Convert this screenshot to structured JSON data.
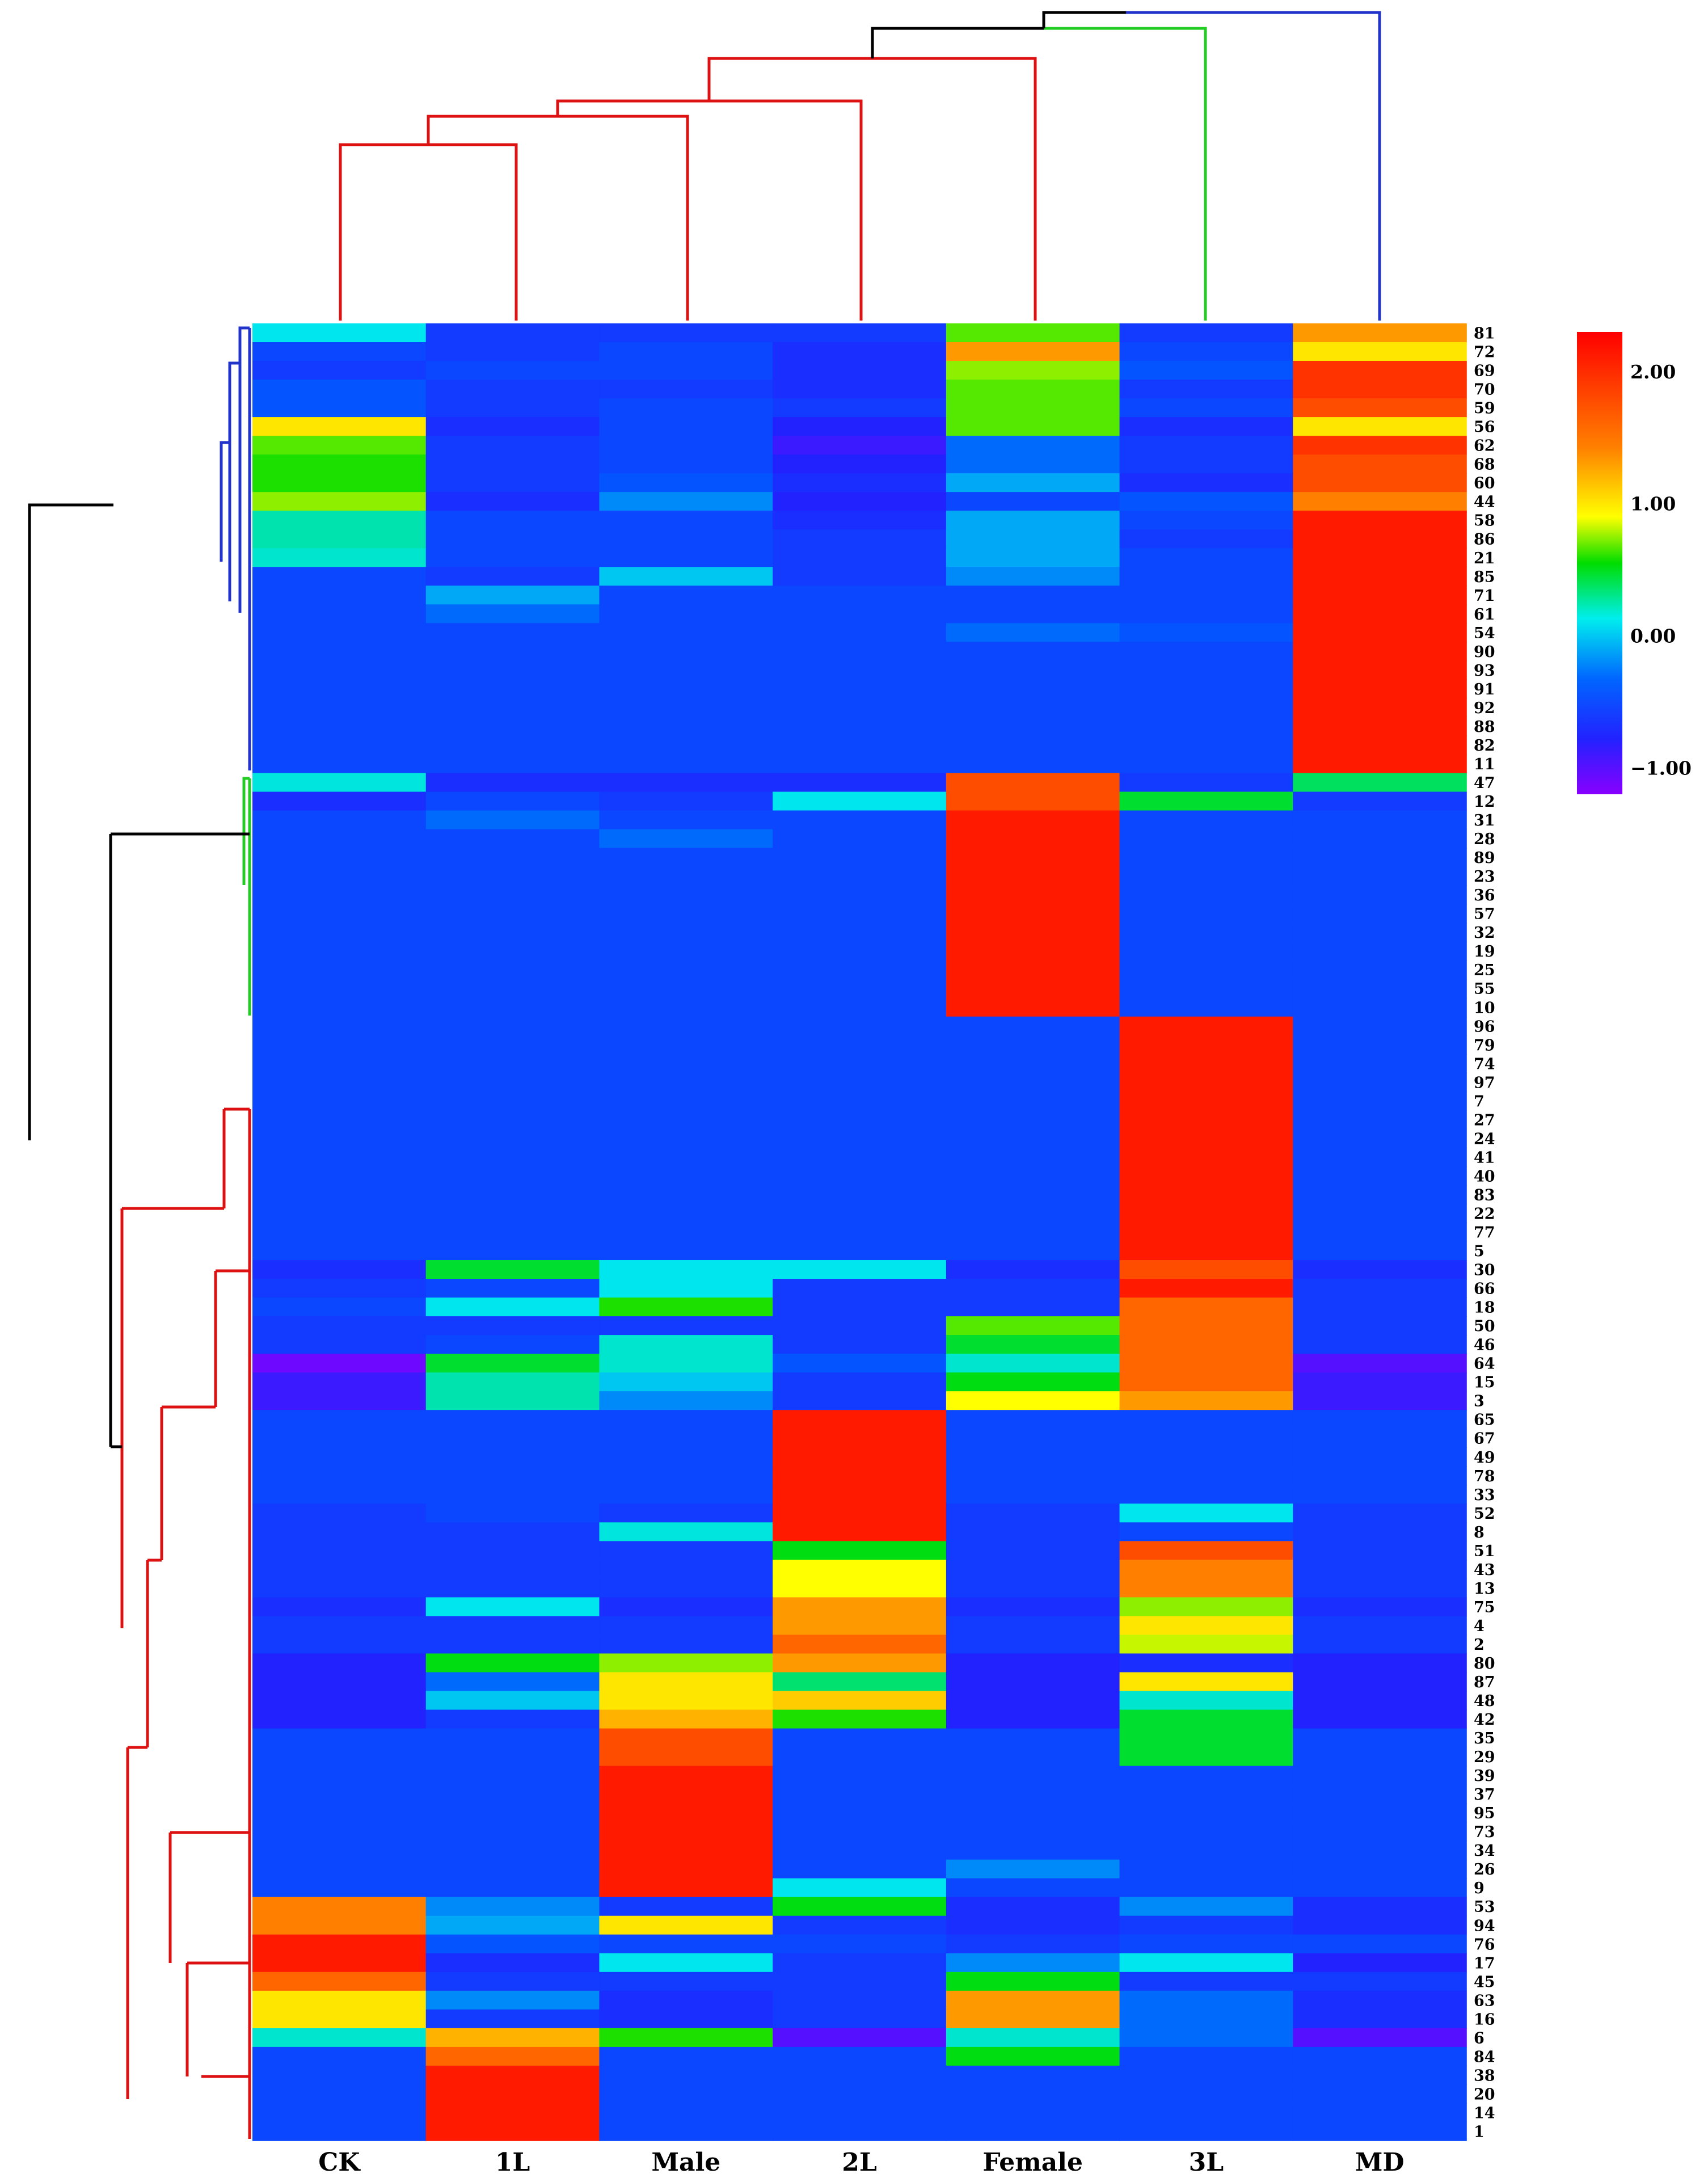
{
  "chart_data": {
    "type": "heatmap",
    "columns": [
      "CK",
      "1L",
      "Male",
      "2L",
      "Female",
      "3L",
      "MD"
    ],
    "rows": [
      "81",
      "72",
      "69",
      "70",
      "59",
      "56",
      "62",
      "68",
      "60",
      "44",
      "58",
      "86",
      "21",
      "85",
      "71",
      "61",
      "54",
      "90",
      "93",
      "91",
      "92",
      "88",
      "82",
      "11",
      "47",
      "12",
      "31",
      "28",
      "89",
      "23",
      "36",
      "57",
      "32",
      "19",
      "25",
      "55",
      "10",
      "96",
      "79",
      "74",
      "97",
      "7",
      "27",
      "24",
      "41",
      "40",
      "83",
      "22",
      "77",
      "5",
      "30",
      "66",
      "18",
      "50",
      "46",
      "64",
      "15",
      "3",
      "65",
      "67",
      "49",
      "78",
      "33",
      "52",
      "8",
      "51",
      "43",
      "13",
      "75",
      "4",
      "2",
      "80",
      "87",
      "48",
      "42",
      "35",
      "29",
      "39",
      "37",
      "95",
      "73",
      "34",
      "26",
      "9",
      "53",
      "94",
      "76",
      "17",
      "45",
      "63",
      "16",
      "6",
      "84",
      "38",
      "20",
      "14",
      "1"
    ],
    "default_value": -0.5,
    "overrides": {
      "81": [
        0.1,
        -0.6,
        -0.6,
        -0.6,
        1.0,
        -0.6,
        1.7
      ],
      "72": [
        -0.5,
        -0.6,
        -0.5,
        -0.7,
        1.7,
        -0.5,
        1.4
      ],
      "69": [
        -0.6,
        -0.5,
        -0.5,
        -0.7,
        1.1,
        -0.4,
        2.1
      ],
      "70": [
        -0.4,
        -0.6,
        -0.6,
        -0.7,
        1.0,
        -0.6,
        2.1
      ],
      "59": [
        -0.4,
        -0.6,
        -0.5,
        -0.6,
        1.0,
        -0.5,
        2.0
      ],
      "56": [
        1.4,
        -0.7,
        -0.5,
        -0.8,
        1.0,
        -0.7,
        1.4
      ],
      "62": [
        1.0,
        -0.6,
        -0.5,
        -0.9,
        -0.3,
        -0.6,
        2.1
      ],
      "68": [
        0.9,
        -0.6,
        -0.5,
        -0.8,
        -0.3,
        -0.6,
        2.0
      ],
      "60": [
        0.9,
        -0.6,
        -0.4,
        -0.7,
        -0.1,
        -0.7,
        2.0
      ],
      "44": [
        1.1,
        -0.7,
        -0.2,
        -0.8,
        -0.5,
        -0.4,
        1.8
      ],
      "58": [
        0.3,
        -0.5,
        -0.5,
        -0.7,
        -0.1,
        -0.5,
        2.2
      ],
      "86": [
        0.3,
        -0.5,
        -0.5,
        -0.6,
        -0.1,
        -0.6,
        2.2
      ],
      "21": [
        0.2,
        -0.5,
        -0.5,
        -0.6,
        -0.1,
        -0.5,
        2.2
      ],
      "85": [
        -0.5,
        -0.6,
        0.0,
        -0.6,
        -0.2,
        -0.5,
        2.2
      ],
      "71": [
        -0.5,
        -0.1,
        -0.5,
        -0.5,
        -0.5,
        -0.5,
        2.2
      ],
      "61": [
        -0.5,
        -0.3,
        -0.5,
        -0.5,
        -0.5,
        -0.5,
        2.2
      ],
      "54": [
        -0.5,
        -0.5,
        -0.5,
        -0.5,
        -0.3,
        -0.4,
        2.2
      ],
      "90": [
        -0.5,
        -0.5,
        -0.5,
        -0.5,
        -0.5,
        -0.5,
        2.2
      ],
      "93": [
        -0.5,
        -0.5,
        -0.5,
        -0.5,
        -0.5,
        -0.5,
        2.2
      ],
      "91": [
        -0.5,
        -0.5,
        -0.5,
        -0.5,
        -0.5,
        -0.5,
        2.2
      ],
      "92": [
        -0.5,
        -0.5,
        -0.5,
        -0.5,
        -0.5,
        -0.5,
        2.2
      ],
      "88": [
        -0.5,
        -0.5,
        -0.5,
        -0.5,
        -0.5,
        -0.5,
        2.2
      ],
      "82": [
        -0.5,
        -0.5,
        -0.5,
        -0.5,
        -0.5,
        -0.5,
        2.2
      ],
      "11": [
        -0.5,
        -0.5,
        -0.5,
        -0.5,
        -0.5,
        -0.5,
        2.2
      ],
      "47": [
        0.15,
        -0.7,
        -0.7,
        -0.7,
        2.0,
        -0.6,
        0.55
      ],
      "12": [
        -0.7,
        -0.5,
        -0.6,
        0.1,
        2.0,
        0.7,
        -0.6
      ],
      "31": [
        -0.5,
        -0.3,
        -0.5,
        -0.5,
        2.2,
        -0.5,
        -0.5
      ],
      "28": [
        -0.5,
        -0.5,
        -0.3,
        -0.5,
        2.2,
        -0.5,
        -0.5
      ],
      "89": [
        -0.5,
        -0.5,
        -0.5,
        -0.5,
        2.2,
        -0.5,
        -0.5
      ],
      "23": [
        -0.5,
        -0.5,
        -0.5,
        -0.5,
        2.2,
        -0.5,
        -0.5
      ],
      "36": [
        -0.5,
        -0.5,
        -0.5,
        -0.5,
        2.2,
        -0.5,
        -0.5
      ],
      "57": [
        -0.5,
        -0.5,
        -0.5,
        -0.5,
        2.2,
        -0.5,
        -0.5
      ],
      "32": [
        -0.5,
        -0.5,
        -0.5,
        -0.5,
        2.2,
        -0.5,
        -0.5
      ],
      "19": [
        -0.5,
        -0.5,
        -0.5,
        -0.5,
        2.2,
        -0.5,
        -0.5
      ],
      "25": [
        -0.5,
        -0.5,
        -0.5,
        -0.5,
        2.2,
        -0.5,
        -0.5
      ],
      "55": [
        -0.5,
        -0.5,
        -0.5,
        -0.5,
        2.2,
        -0.5,
        -0.5
      ],
      "10": [
        -0.5,
        -0.5,
        -0.5,
        -0.5,
        2.2,
        -0.5,
        -0.5
      ],
      "96": [
        -0.5,
        -0.5,
        -0.5,
        -0.5,
        -0.5,
        2.2,
        -0.5
      ],
      "79": [
        -0.5,
        -0.5,
        -0.5,
        -0.5,
        -0.5,
        2.2,
        -0.5
      ],
      "74": [
        -0.5,
        -0.5,
        -0.5,
        -0.5,
        -0.5,
        2.2,
        -0.5
      ],
      "97": [
        -0.5,
        -0.5,
        -0.5,
        -0.5,
        -0.5,
        2.2,
        -0.5
      ],
      "7": [
        -0.5,
        -0.5,
        -0.5,
        -0.5,
        -0.5,
        2.2,
        -0.5
      ],
      "27": [
        -0.5,
        -0.5,
        -0.5,
        -0.5,
        -0.5,
        2.2,
        -0.5
      ],
      "24": [
        -0.5,
        -0.5,
        -0.5,
        -0.5,
        -0.5,
        2.2,
        -0.5
      ],
      "41": [
        -0.5,
        -0.5,
        -0.5,
        -0.5,
        -0.5,
        2.2,
        -0.5
      ],
      "40": [
        -0.5,
        -0.5,
        -0.5,
        -0.5,
        -0.5,
        2.2,
        -0.5
      ],
      "83": [
        -0.5,
        -0.5,
        -0.5,
        -0.5,
        -0.5,
        2.2,
        -0.5
      ],
      "22": [
        -0.5,
        -0.5,
        -0.5,
        -0.5,
        -0.5,
        2.2,
        -0.5
      ],
      "77": [
        -0.5,
        -0.5,
        -0.5,
        -0.5,
        -0.5,
        2.2,
        -0.5
      ],
      "5": [
        -0.5,
        -0.5,
        -0.5,
        -0.5,
        -0.5,
        2.2,
        -0.5
      ],
      "30": [
        -0.7,
        0.7,
        0.1,
        0.1,
        -0.7,
        2.0,
        -0.7
      ],
      "66": [
        -0.6,
        -0.5,
        0.1,
        -0.6,
        -0.6,
        2.2,
        -0.6
      ],
      "18": [
        -0.5,
        0.1,
        0.9,
        -0.6,
        -0.6,
        1.9,
        -0.6
      ],
      "50": [
        -0.6,
        -0.6,
        -0.6,
        -0.6,
        1.0,
        1.9,
        -0.6
      ],
      "46": [
        -0.6,
        -0.5,
        0.2,
        -0.6,
        0.7,
        1.9,
        -0.6
      ],
      "64": [
        -1.1,
        0.7,
        0.2,
        -0.4,
        0.2,
        1.9,
        -1.0
      ],
      "15": [
        -0.9,
        0.3,
        0.0,
        -0.6,
        0.8,
        1.9,
        -0.9
      ],
      "3": [
        -0.9,
        0.3,
        -0.2,
        -0.6,
        1.3,
        1.7,
        -0.9
      ],
      "65": [
        -0.5,
        -0.5,
        -0.5,
        2.2,
        -0.5,
        -0.5,
        -0.5
      ],
      "67": [
        -0.5,
        -0.5,
        -0.5,
        2.2,
        -0.5,
        -0.5,
        -0.5
      ],
      "49": [
        -0.5,
        -0.5,
        -0.5,
        2.2,
        -0.5,
        -0.5,
        -0.5
      ],
      "78": [
        -0.5,
        -0.5,
        -0.5,
        2.2,
        -0.5,
        -0.5,
        -0.5
      ],
      "33": [
        -0.5,
        -0.5,
        -0.5,
        2.2,
        -0.5,
        -0.5,
        -0.5
      ],
      "52": [
        -0.6,
        -0.5,
        -0.6,
        2.2,
        -0.6,
        0.1,
        -0.6
      ],
      "8": [
        -0.6,
        -0.6,
        0.15,
        2.2,
        -0.6,
        -0.5,
        -0.6
      ],
      "51": [
        -0.6,
        -0.6,
        -0.6,
        0.8,
        -0.6,
        2.0,
        -0.6
      ],
      "43": [
        -0.6,
        -0.6,
        -0.6,
        1.3,
        -0.6,
        1.8,
        -0.6
      ],
      "13": [
        -0.6,
        -0.6,
        -0.6,
        1.3,
        -0.6,
        1.8,
        -0.6
      ],
      "75": [
        -0.7,
        0.1,
        -0.7,
        1.7,
        -0.7,
        1.1,
        -0.7
      ],
      "4": [
        -0.6,
        -0.6,
        -0.6,
        1.7,
        -0.6,
        1.4,
        -0.6
      ],
      "2": [
        -0.6,
        -0.6,
        -0.6,
        1.9,
        -0.6,
        1.2,
        -0.6
      ],
      "80": [
        -0.8,
        0.8,
        1.1,
        1.7,
        -0.8,
        -0.7,
        -0.8
      ],
      "87": [
        -0.8,
        -0.3,
        1.4,
        0.5,
        -0.8,
        1.4,
        -0.8
      ],
      "48": [
        -0.8,
        0.0,
        1.4,
        1.5,
        -0.8,
        0.2,
        -0.8
      ],
      "42": [
        -0.8,
        -0.6,
        1.6,
        0.9,
        -0.8,
        0.7,
        -0.8
      ],
      "35": [
        -0.5,
        -0.5,
        2.0,
        -0.5,
        -0.5,
        0.7,
        -0.5
      ],
      "29": [
        -0.5,
        -0.5,
        2.0,
        -0.5,
        -0.5,
        0.7,
        -0.5
      ],
      "39": [
        -0.5,
        -0.5,
        2.2,
        -0.5,
        -0.5,
        -0.5,
        -0.5
      ],
      "37": [
        -0.5,
        -0.5,
        2.2,
        -0.5,
        -0.5,
        -0.5,
        -0.5
      ],
      "95": [
        -0.5,
        -0.5,
        2.2,
        -0.5,
        -0.5,
        -0.5,
        -0.5
      ],
      "73": [
        -0.5,
        -0.5,
        2.2,
        -0.5,
        -0.5,
        -0.5,
        -0.5
      ],
      "34": [
        -0.5,
        -0.5,
        2.2,
        -0.5,
        -0.5,
        -0.5,
        -0.5
      ],
      "26": [
        -0.5,
        -0.5,
        2.2,
        -0.5,
        -0.2,
        -0.5,
        -0.5
      ],
      "9": [
        -0.5,
        -0.5,
        2.2,
        0.1,
        -0.5,
        -0.5,
        -0.5
      ],
      "53": [
        1.8,
        -0.2,
        -0.6,
        0.8,
        -0.7,
        -0.2,
        -0.7
      ],
      "94": [
        1.8,
        -0.1,
        1.4,
        -0.6,
        -0.7,
        -0.6,
        -0.7
      ],
      "76": [
        2.2,
        -0.4,
        -0.5,
        -0.5,
        -0.6,
        -0.5,
        -0.5
      ],
      "17": [
        2.2,
        -0.7,
        0.1,
        -0.6,
        -0.2,
        0.1,
        -0.8
      ],
      "45": [
        1.9,
        -0.6,
        -0.6,
        -0.6,
        0.8,
        -0.6,
        -0.6
      ],
      "63": [
        1.4,
        -0.2,
        -0.7,
        -0.6,
        1.7,
        -0.3,
        -0.7
      ],
      "16": [
        1.4,
        -0.6,
        -0.7,
        -0.6,
        1.7,
        -0.3,
        -0.7
      ],
      "6": [
        0.2,
        1.6,
        0.9,
        -1.0,
        0.2,
        -0.3,
        -1.0
      ],
      "84": [
        -0.5,
        1.9,
        -0.5,
        -0.5,
        0.8,
        -0.5,
        -0.5
      ],
      "38": [
        -0.5,
        2.2,
        -0.5,
        -0.5,
        -0.5,
        -0.5,
        -0.5
      ],
      "20": [
        -0.5,
        2.2,
        -0.5,
        -0.5,
        -0.5,
        -0.5,
        -0.5
      ],
      "14": [
        -0.5,
        2.2,
        -0.5,
        -0.5,
        -0.5,
        -0.5,
        -0.5
      ],
      "1": [
        -0.5,
        2.2,
        -0.5,
        -0.5,
        -0.5,
        -0.5,
        -0.5
      ]
    },
    "colorbar": {
      "min": -1.2,
      "max": 2.3,
      "ticks": [
        2.0,
        1.0,
        0.0,
        -1.0
      ],
      "tick_labels": [
        "2.00",
        "1.00",
        "0.00",
        "−1.00"
      ]
    },
    "row_cluster_colors": {
      "cluster_1": "#2233cc",
      "cluster_2": "#22cc22",
      "cluster_3": "#dd1111"
    },
    "column_dendrogram_colors": [
      "#dd1111",
      "#22cc22",
      "#2233cc",
      "#000000"
    ],
    "title": "",
    "xlabel": "",
    "ylabel": ""
  }
}
